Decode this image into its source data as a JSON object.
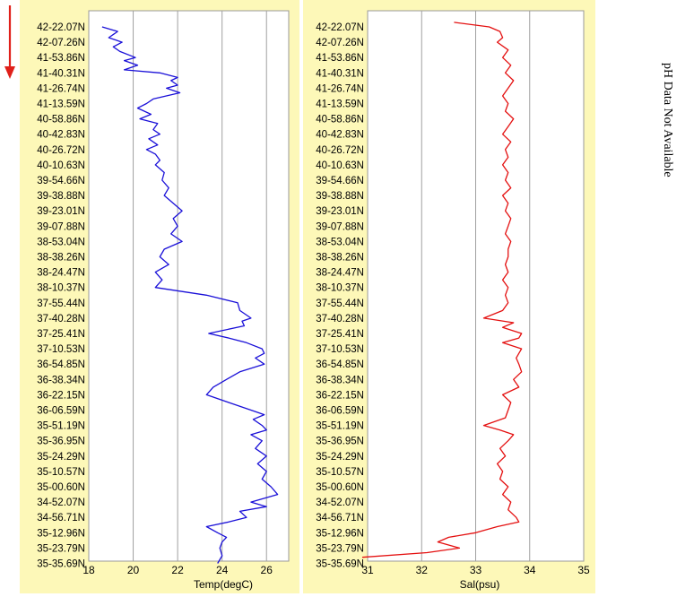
{
  "latitude_labels": [
    "42-22.07N",
    "42-07.26N",
    "41-53.86N",
    "41-40.31N",
    "41-26.74N",
    "41-13.59N",
    "40-58.86N",
    "40-42.83N",
    "40-26.72N",
    "40-10.63N",
    "39-54.66N",
    "39-38.88N",
    "39-23.01N",
    "39-07.88N",
    "38-53.04N",
    "38-38.26N",
    "38-24.47N",
    "38-10.37N",
    "37-55.44N",
    "37-40.28N",
    "37-25.41N",
    "37-10.53N",
    "36-54.85N",
    "36-38.34N",
    "36-22.15N",
    "36-06.59N",
    "35-51.19N",
    "35-36.95N",
    "35-24.29N",
    "35-10.57N",
    "35-00.60N",
    "34-52.07N",
    "34-56.71N",
    "35-12.96N",
    "35-23.79N",
    "35-35.69N"
  ],
  "ph_note": "pH Data Not Available",
  "direction_arrow_color": "#e0201a",
  "chart_data": [
    {
      "type": "line",
      "title": "",
      "xlabel": "Temp(degC)",
      "ylabel": "",
      "xlim": [
        18,
        27
      ],
      "xticks": [
        "18",
        "20",
        "22",
        "24",
        "26"
      ],
      "grid": "vertical",
      "color": "#1a10d8",
      "series": [
        {
          "y_index": [
            0,
            0.3,
            0.7,
            1.0,
            1.3,
            1.6,
            2.0,
            2.2,
            2.5,
            2.8,
            3.0,
            3.3,
            3.5,
            3.8,
            4.0,
            4.3,
            4.7,
            5.0,
            5.3,
            5.7,
            6.0,
            6.3,
            6.7,
            7.0,
            7.3,
            7.7,
            8.0,
            8.3,
            8.7,
            9.0,
            9.5,
            10.0,
            10.5,
            11.0,
            11.5,
            12.0,
            12.5,
            13.0,
            13.5,
            14.0,
            14.5,
            15.0,
            15.5,
            16.0,
            16.5,
            17.0,
            17.5,
            18.0,
            18.5,
            19.0,
            19.2,
            19.5,
            20.0,
            20.3,
            20.6,
            21.0,
            21.3,
            21.6,
            22.0,
            22.5,
            23.0,
            23.5,
            24.0,
            24.5,
            25.0,
            25.3,
            25.6,
            26.0,
            26.3,
            26.6,
            27.0,
            27.5,
            28.0,
            28.5,
            29.0,
            29.5,
            30.0,
            30.5,
            31.0,
            31.3,
            31.6,
            32.0,
            32.3,
            32.6,
            33.0,
            33.3,
            33.6,
            34.0,
            34.5,
            35.0
          ],
          "x": [
            18.6,
            19.3,
            18.9,
            19.5,
            19.1,
            19.4,
            20.1,
            19.6,
            20.2,
            19.6,
            21.2,
            22.0,
            21.7,
            22.0,
            21.5,
            22.1,
            20.9,
            20.6,
            20.2,
            20.8,
            20.3,
            21.1,
            20.9,
            21.2,
            20.7,
            21.1,
            20.6,
            21.0,
            21.2,
            21.0,
            21.4,
            21.3,
            21.6,
            21.4,
            21.8,
            22.2,
            21.8,
            22.0,
            21.7,
            22.2,
            21.4,
            21.2,
            21.6,
            21.0,
            21.3,
            21.0,
            23.3,
            24.7,
            24.8,
            25.3,
            24.9,
            25.0,
            23.4,
            24.3,
            25.1,
            25.8,
            25.9,
            25.5,
            25.9,
            24.8,
            24.2,
            23.6,
            23.3,
            24.3,
            25.3,
            25.9,
            25.4,
            25.8,
            26.0,
            25.3,
            25.8,
            25.5,
            26.0,
            25.6,
            26.0,
            25.8,
            26.2,
            26.5,
            25.3,
            26.0,
            24.8,
            25.1,
            24.3,
            23.3,
            23.8,
            24.2,
            24.0,
            23.9,
            24.0,
            23.8
          ]
        }
      ]
    },
    {
      "type": "line",
      "title": "",
      "xlabel": "Sal(psu)",
      "ylabel": "",
      "xlim": [
        31,
        35
      ],
      "xticks": [
        "31",
        "32",
        "33",
        "34",
        "35"
      ],
      "grid": "vertical",
      "color": "#e41010",
      "series": [
        {
          "y_index": [
            -0.3,
            0,
            0.3,
            0.7,
            1.0,
            1.5,
            2.0,
            2.5,
            3.0,
            3.5,
            4.0,
            4.5,
            5.0,
            5.5,
            6.0,
            6.5,
            7.0,
            7.5,
            8.0,
            8.5,
            9.0,
            9.5,
            10.0,
            10.5,
            11.0,
            11.5,
            12.0,
            12.5,
            13.0,
            13.5,
            14.0,
            14.5,
            15.0,
            15.5,
            16.0,
            16.5,
            17.0,
            17.5,
            18.0,
            18.5,
            19.0,
            19.3,
            19.6,
            20.0,
            20.3,
            20.6,
            21.0,
            21.3,
            21.6,
            22.0,
            22.5,
            23.0,
            23.5,
            24.0,
            24.5,
            25.0,
            25.5,
            26.0,
            26.3,
            26.6,
            27.0,
            27.5,
            28.0,
            28.5,
            29.0,
            29.5,
            30.0,
            30.5,
            31.0,
            31.5,
            32.0,
            32.3,
            32.6,
            33.0,
            33.3,
            33.6,
            34.0,
            34.3,
            34.6
          ],
          "x": [
            32.6,
            33.25,
            33.45,
            33.5,
            33.4,
            33.6,
            33.5,
            33.65,
            33.55,
            33.7,
            33.6,
            33.5,
            33.6,
            33.55,
            33.7,
            33.6,
            33.5,
            33.65,
            33.55,
            33.6,
            33.5,
            33.6,
            33.55,
            33.65,
            33.5,
            33.6,
            33.55,
            33.65,
            33.6,
            33.55,
            33.65,
            33.6,
            33.6,
            33.55,
            33.6,
            33.5,
            33.6,
            33.55,
            33.6,
            33.5,
            33.15,
            33.7,
            33.5,
            33.85,
            33.8,
            33.5,
            33.85,
            33.8,
            33.75,
            33.8,
            33.85,
            33.7,
            33.8,
            33.5,
            33.65,
            33.6,
            33.55,
            33.15,
            33.45,
            33.7,
            33.6,
            33.45,
            33.55,
            33.4,
            33.5,
            33.45,
            33.6,
            33.5,
            33.65,
            33.6,
            33.75,
            33.8,
            33.4,
            33.0,
            32.5,
            32.3,
            32.7,
            32.1,
            30.9
          ]
        }
      ]
    }
  ]
}
